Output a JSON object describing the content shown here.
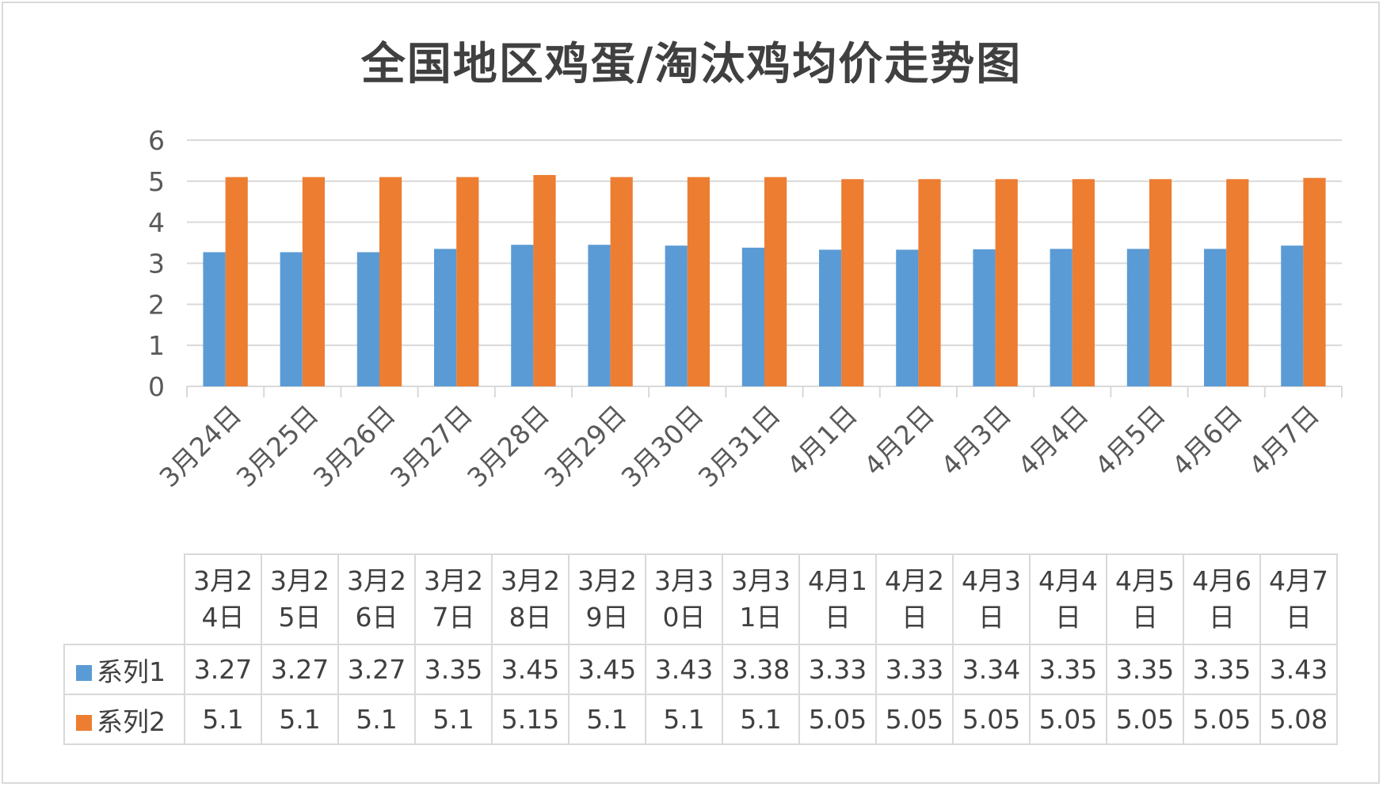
{
  "chart_data": {
    "type": "bar",
    "title": "全国地区鸡蛋/淘汰鸡均价走势图",
    "categories": [
      "3月24日",
      "3月25日",
      "3月26日",
      "3月27日",
      "3月28日",
      "3月29日",
      "3月30日",
      "3月31日",
      "4月1日",
      "4月2日",
      "4月3日",
      "4月4日",
      "4月5日",
      "4月6日",
      "4月7日"
    ],
    "series": [
      {
        "name": "系列1",
        "color": "#5b9bd5",
        "values": [
          3.27,
          3.27,
          3.27,
          3.35,
          3.45,
          3.45,
          3.43,
          3.38,
          3.33,
          3.33,
          3.34,
          3.35,
          3.35,
          3.35,
          3.43
        ]
      },
      {
        "name": "系列2",
        "color": "#ed7d31",
        "values": [
          5.1,
          5.1,
          5.1,
          5.1,
          5.15,
          5.1,
          5.1,
          5.1,
          5.05,
          5.05,
          5.05,
          5.05,
          5.05,
          5.05,
          5.08
        ]
      }
    ],
    "yticks": [
      0,
      1,
      2,
      3,
      4,
      5,
      6
    ],
    "ylim": [
      0,
      6
    ],
    "grid": true,
    "legend": "data-table",
    "xlabel": "",
    "ylabel": ""
  }
}
